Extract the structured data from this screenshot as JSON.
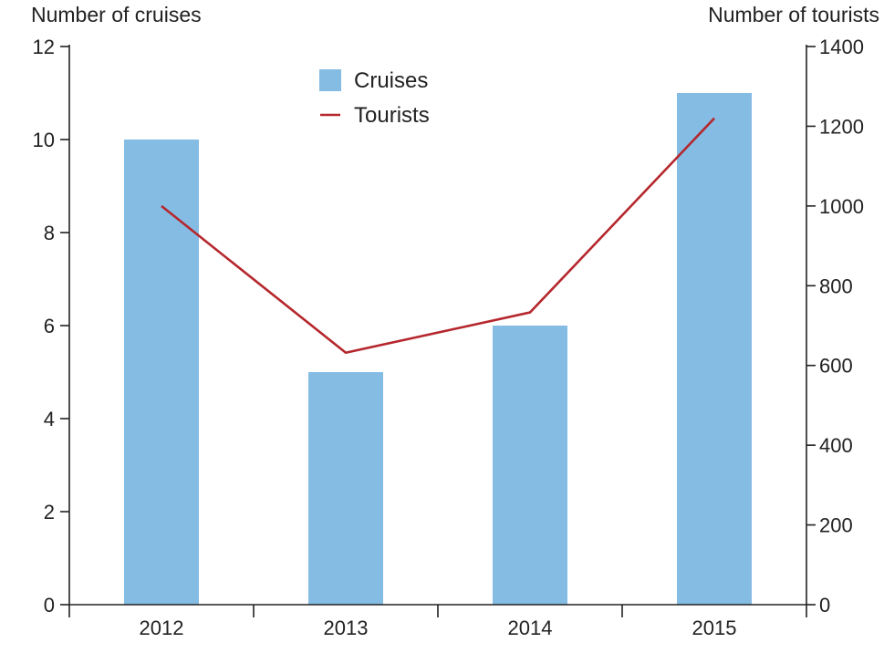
{
  "chart_data": {
    "type": "bar",
    "categories": [
      "2012",
      "2013",
      "2014",
      "2015"
    ],
    "series": [
      {
        "name": "Cruises",
        "type": "bar",
        "axis": "left",
        "values": [
          10,
          5,
          6,
          11
        ],
        "color": "#85bce4"
      },
      {
        "name": "Tourists",
        "type": "line",
        "axis": "right",
        "values": [
          1000,
          632,
          733,
          1220
        ],
        "color": "#b5272d"
      }
    ],
    "y_left": {
      "label": "Number of cruises",
      "range": [
        0,
        12
      ],
      "ticks": [
        "0",
        "2",
        "4",
        "6",
        "8",
        "10",
        "12"
      ]
    },
    "y_right": {
      "label": "Number of tourists",
      "range": [
        0,
        1400
      ],
      "ticks": [
        "0",
        "200",
        "400",
        "600",
        "800",
        "1000",
        "1200",
        "1400"
      ]
    },
    "legend": {
      "placement": "top-center"
    },
    "grid": false
  }
}
